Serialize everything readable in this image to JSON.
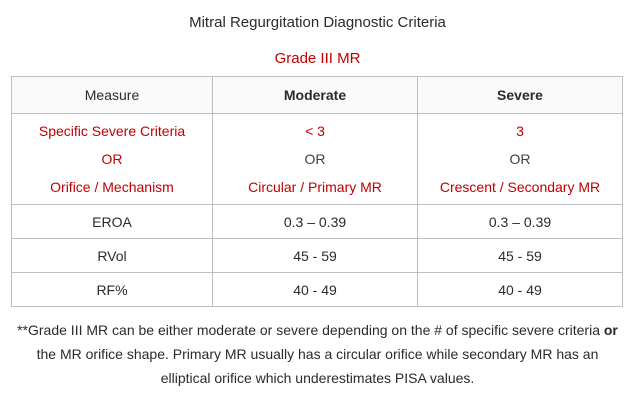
{
  "title": "Mitral Regurgitation Diagnostic Criteria",
  "subtitle": "Grade III MR",
  "table": {
    "headers": [
      "Measure",
      "Moderate",
      "Severe"
    ],
    "criteria": {
      "measure": [
        "Specific Severe Criteria",
        "OR",
        "Orifice / Mechanism"
      ],
      "moderate": [
        "< 3",
        "OR",
        "Circular / Primary MR"
      ],
      "severe": [
        "3",
        "OR",
        "Crescent / Secondary MR"
      ]
    },
    "rows": [
      {
        "measure": "EROA",
        "moderate": "0.3 – 0.39",
        "severe": "0.3 – 0.39"
      },
      {
        "measure": "RVol",
        "moderate": "45 - 59",
        "severe": "45 - 59"
      },
      {
        "measure": "RF%",
        "moderate": "40 - 49",
        "severe": "40 - 49"
      }
    ]
  },
  "footnote": {
    "part1": "**Grade III MR can be either moderate or severe depending on the # of specific severe criteria",
    "bold": "or",
    "part2": "the MR orifice shape.  Primary MR usually has a circular orifice while secondary MR has an elliptical orifice which underestimates PISA values."
  },
  "colors": {
    "accent_red": "#c00000",
    "border": "#bfbfbf",
    "text": "#2b2b2b"
  }
}
